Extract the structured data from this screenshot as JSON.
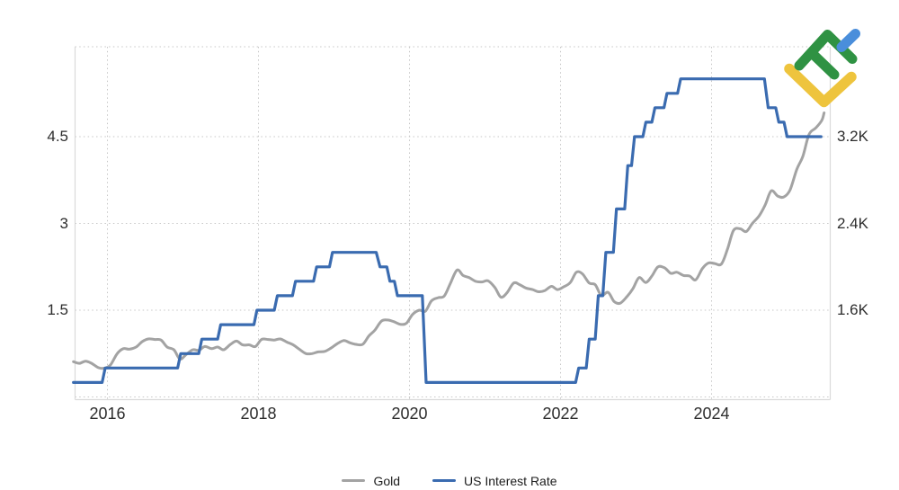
{
  "branding": {
    "logo_name": "litefinance-logo",
    "colors": {
      "green": "#2f9243",
      "yellow": "#eec43d",
      "blue": "#4a8edb"
    }
  },
  "legend": {
    "items": [
      {
        "label": "Gold",
        "color": "#a3a3a3"
      },
      {
        "label": "US Interest Rate",
        "color": "#3a6bb0"
      }
    ]
  },
  "chart_data": {
    "type": "line",
    "title": "",
    "legend_position": "bottom",
    "grid": "dotted",
    "x_axis": {
      "range": [
        2015.55,
        2025.58
      ],
      "tick_years": [
        2016,
        2018,
        2020,
        2022,
        2024
      ],
      "tick_labels": [
        "2016",
        "2018",
        "2020",
        "2022",
        "2024"
      ]
    },
    "y_axis_left": {
      "range": [
        0,
        6.1
      ],
      "grid_values": [
        0,
        1.5,
        3,
        4.5
      ],
      "ticks": [
        {
          "value": 4.5,
          "label": "4.5"
        },
        {
          "value": 3,
          "label": "3"
        },
        {
          "value": 1.5,
          "label": "1.5"
        }
      ]
    },
    "y_axis_right": {
      "range": [
        760,
        4060
      ],
      "ticks": [
        {
          "value": 3200,
          "label": "3.2K"
        },
        {
          "value": 2400,
          "label": "2.4K"
        },
        {
          "value": 1600,
          "label": "1.6K"
        }
      ]
    },
    "series": [
      {
        "name": "Gold",
        "axis": "right",
        "color": "#a3a3a3",
        "width": 3,
        "style": "smooth",
        "points": [
          [
            2015.55,
            1125
          ],
          [
            2015.63,
            1110
          ],
          [
            2015.71,
            1130
          ],
          [
            2015.79,
            1110
          ],
          [
            2015.88,
            1070
          ],
          [
            2015.96,
            1065
          ],
          [
            2016.04,
            1095
          ],
          [
            2016.13,
            1200
          ],
          [
            2016.21,
            1245
          ],
          [
            2016.29,
            1240
          ],
          [
            2016.38,
            1260
          ],
          [
            2016.46,
            1310
          ],
          [
            2016.54,
            1335
          ],
          [
            2016.63,
            1330
          ],
          [
            2016.71,
            1325
          ],
          [
            2016.79,
            1260
          ],
          [
            2016.88,
            1235
          ],
          [
            2016.96,
            1150
          ],
          [
            2017.04,
            1190
          ],
          [
            2017.13,
            1235
          ],
          [
            2017.21,
            1230
          ],
          [
            2017.29,
            1265
          ],
          [
            2017.38,
            1245
          ],
          [
            2017.46,
            1260
          ],
          [
            2017.54,
            1235
          ],
          [
            2017.63,
            1285
          ],
          [
            2017.71,
            1315
          ],
          [
            2017.79,
            1280
          ],
          [
            2017.88,
            1280
          ],
          [
            2017.96,
            1265
          ],
          [
            2018.04,
            1330
          ],
          [
            2018.13,
            1330
          ],
          [
            2018.21,
            1325
          ],
          [
            2018.29,
            1335
          ],
          [
            2018.38,
            1305
          ],
          [
            2018.46,
            1280
          ],
          [
            2018.54,
            1240
          ],
          [
            2018.63,
            1200
          ],
          [
            2018.71,
            1200
          ],
          [
            2018.79,
            1215
          ],
          [
            2018.88,
            1220
          ],
          [
            2018.96,
            1250
          ],
          [
            2019.04,
            1290
          ],
          [
            2019.13,
            1320
          ],
          [
            2019.21,
            1300
          ],
          [
            2019.29,
            1285
          ],
          [
            2019.38,
            1285
          ],
          [
            2019.46,
            1360
          ],
          [
            2019.54,
            1415
          ],
          [
            2019.63,
            1500
          ],
          [
            2019.71,
            1510
          ],
          [
            2019.79,
            1495
          ],
          [
            2019.88,
            1470
          ],
          [
            2019.96,
            1480
          ],
          [
            2020.04,
            1560
          ],
          [
            2020.13,
            1600
          ],
          [
            2020.21,
            1590
          ],
          [
            2020.29,
            1685
          ],
          [
            2020.38,
            1715
          ],
          [
            2020.46,
            1730
          ],
          [
            2020.54,
            1845
          ],
          [
            2020.63,
            1970
          ],
          [
            2020.71,
            1920
          ],
          [
            2020.79,
            1900
          ],
          [
            2020.88,
            1865
          ],
          [
            2020.96,
            1860
          ],
          [
            2021.04,
            1870
          ],
          [
            2021.13,
            1810
          ],
          [
            2021.21,
            1720
          ],
          [
            2021.29,
            1760
          ],
          [
            2021.38,
            1850
          ],
          [
            2021.46,
            1835
          ],
          [
            2021.54,
            1805
          ],
          [
            2021.63,
            1790
          ],
          [
            2021.71,
            1770
          ],
          [
            2021.79,
            1780
          ],
          [
            2021.88,
            1820
          ],
          [
            2021.96,
            1790
          ],
          [
            2022.04,
            1815
          ],
          [
            2022.13,
            1855
          ],
          [
            2022.21,
            1950
          ],
          [
            2022.29,
            1935
          ],
          [
            2022.38,
            1850
          ],
          [
            2022.46,
            1835
          ],
          [
            2022.54,
            1735
          ],
          [
            2022.63,
            1765
          ],
          [
            2022.71,
            1680
          ],
          [
            2022.79,
            1665
          ],
          [
            2022.88,
            1725
          ],
          [
            2022.96,
            1800
          ],
          [
            2023.04,
            1900
          ],
          [
            2023.13,
            1855
          ],
          [
            2023.21,
            1915
          ],
          [
            2023.29,
            2000
          ],
          [
            2023.38,
            1990
          ],
          [
            2023.46,
            1940
          ],
          [
            2023.54,
            1950
          ],
          [
            2023.63,
            1920
          ],
          [
            2023.71,
            1915
          ],
          [
            2023.79,
            1880
          ],
          [
            2023.88,
            1985
          ],
          [
            2023.96,
            2035
          ],
          [
            2024.04,
            2030
          ],
          [
            2024.13,
            2025
          ],
          [
            2024.21,
            2160
          ],
          [
            2024.29,
            2335
          ],
          [
            2024.38,
            2350
          ],
          [
            2024.46,
            2325
          ],
          [
            2024.54,
            2400
          ],
          [
            2024.63,
            2470
          ],
          [
            2024.71,
            2570
          ],
          [
            2024.79,
            2700
          ],
          [
            2024.88,
            2650
          ],
          [
            2024.96,
            2645
          ],
          [
            2025.04,
            2710
          ],
          [
            2025.13,
            2900
          ],
          [
            2025.21,
            3020
          ],
          [
            2025.29,
            3220
          ],
          [
            2025.38,
            3280
          ],
          [
            2025.46,
            3350
          ],
          [
            2025.49,
            3420
          ]
        ]
      },
      {
        "name": "US Interest Rate",
        "axis": "left",
        "color": "#3a6bb0",
        "width": 3.2,
        "style": "step",
        "points": [
          [
            2015.55,
            0.25
          ],
          [
            2015.93,
            0.25
          ],
          [
            2015.97,
            0.5
          ],
          [
            2016.93,
            0.5
          ],
          [
            2016.97,
            0.75
          ],
          [
            2017.21,
            0.75
          ],
          [
            2017.25,
            1.0
          ],
          [
            2017.46,
            1.0
          ],
          [
            2017.5,
            1.25
          ],
          [
            2017.94,
            1.25
          ],
          [
            2017.98,
            1.5
          ],
          [
            2018.21,
            1.5
          ],
          [
            2018.25,
            1.75
          ],
          [
            2018.45,
            1.75
          ],
          [
            2018.49,
            2.0
          ],
          [
            2018.73,
            2.0
          ],
          [
            2018.77,
            2.25
          ],
          [
            2018.94,
            2.25
          ],
          [
            2018.98,
            2.5
          ],
          [
            2019.56,
            2.5
          ],
          [
            2019.61,
            2.25
          ],
          [
            2019.7,
            2.25
          ],
          [
            2019.74,
            2.0
          ],
          [
            2019.8,
            2.0
          ],
          [
            2019.84,
            1.75
          ],
          [
            2020.17,
            1.75
          ],
          [
            2020.22,
            0.25
          ],
          [
            2022.2,
            0.25
          ],
          [
            2022.24,
            0.5
          ],
          [
            2022.34,
            0.5
          ],
          [
            2022.38,
            1.0
          ],
          [
            2022.46,
            1.0
          ],
          [
            2022.5,
            1.75
          ],
          [
            2022.56,
            1.75
          ],
          [
            2022.6,
            2.5
          ],
          [
            2022.7,
            2.5
          ],
          [
            2022.74,
            3.25
          ],
          [
            2022.85,
            3.25
          ],
          [
            2022.89,
            4.0
          ],
          [
            2022.94,
            4.0
          ],
          [
            2022.98,
            4.5
          ],
          [
            2023.09,
            4.5
          ],
          [
            2023.13,
            4.75
          ],
          [
            2023.21,
            4.75
          ],
          [
            2023.25,
            5.0
          ],
          [
            2023.37,
            5.0
          ],
          [
            2023.41,
            5.25
          ],
          [
            2023.55,
            5.25
          ],
          [
            2023.59,
            5.5
          ],
          [
            2024.7,
            5.5
          ],
          [
            2024.75,
            5.0
          ],
          [
            2024.85,
            5.0
          ],
          [
            2024.89,
            4.75
          ],
          [
            2024.96,
            4.75
          ],
          [
            2025.0,
            4.5
          ],
          [
            2025.45,
            4.5
          ]
        ]
      }
    ]
  }
}
